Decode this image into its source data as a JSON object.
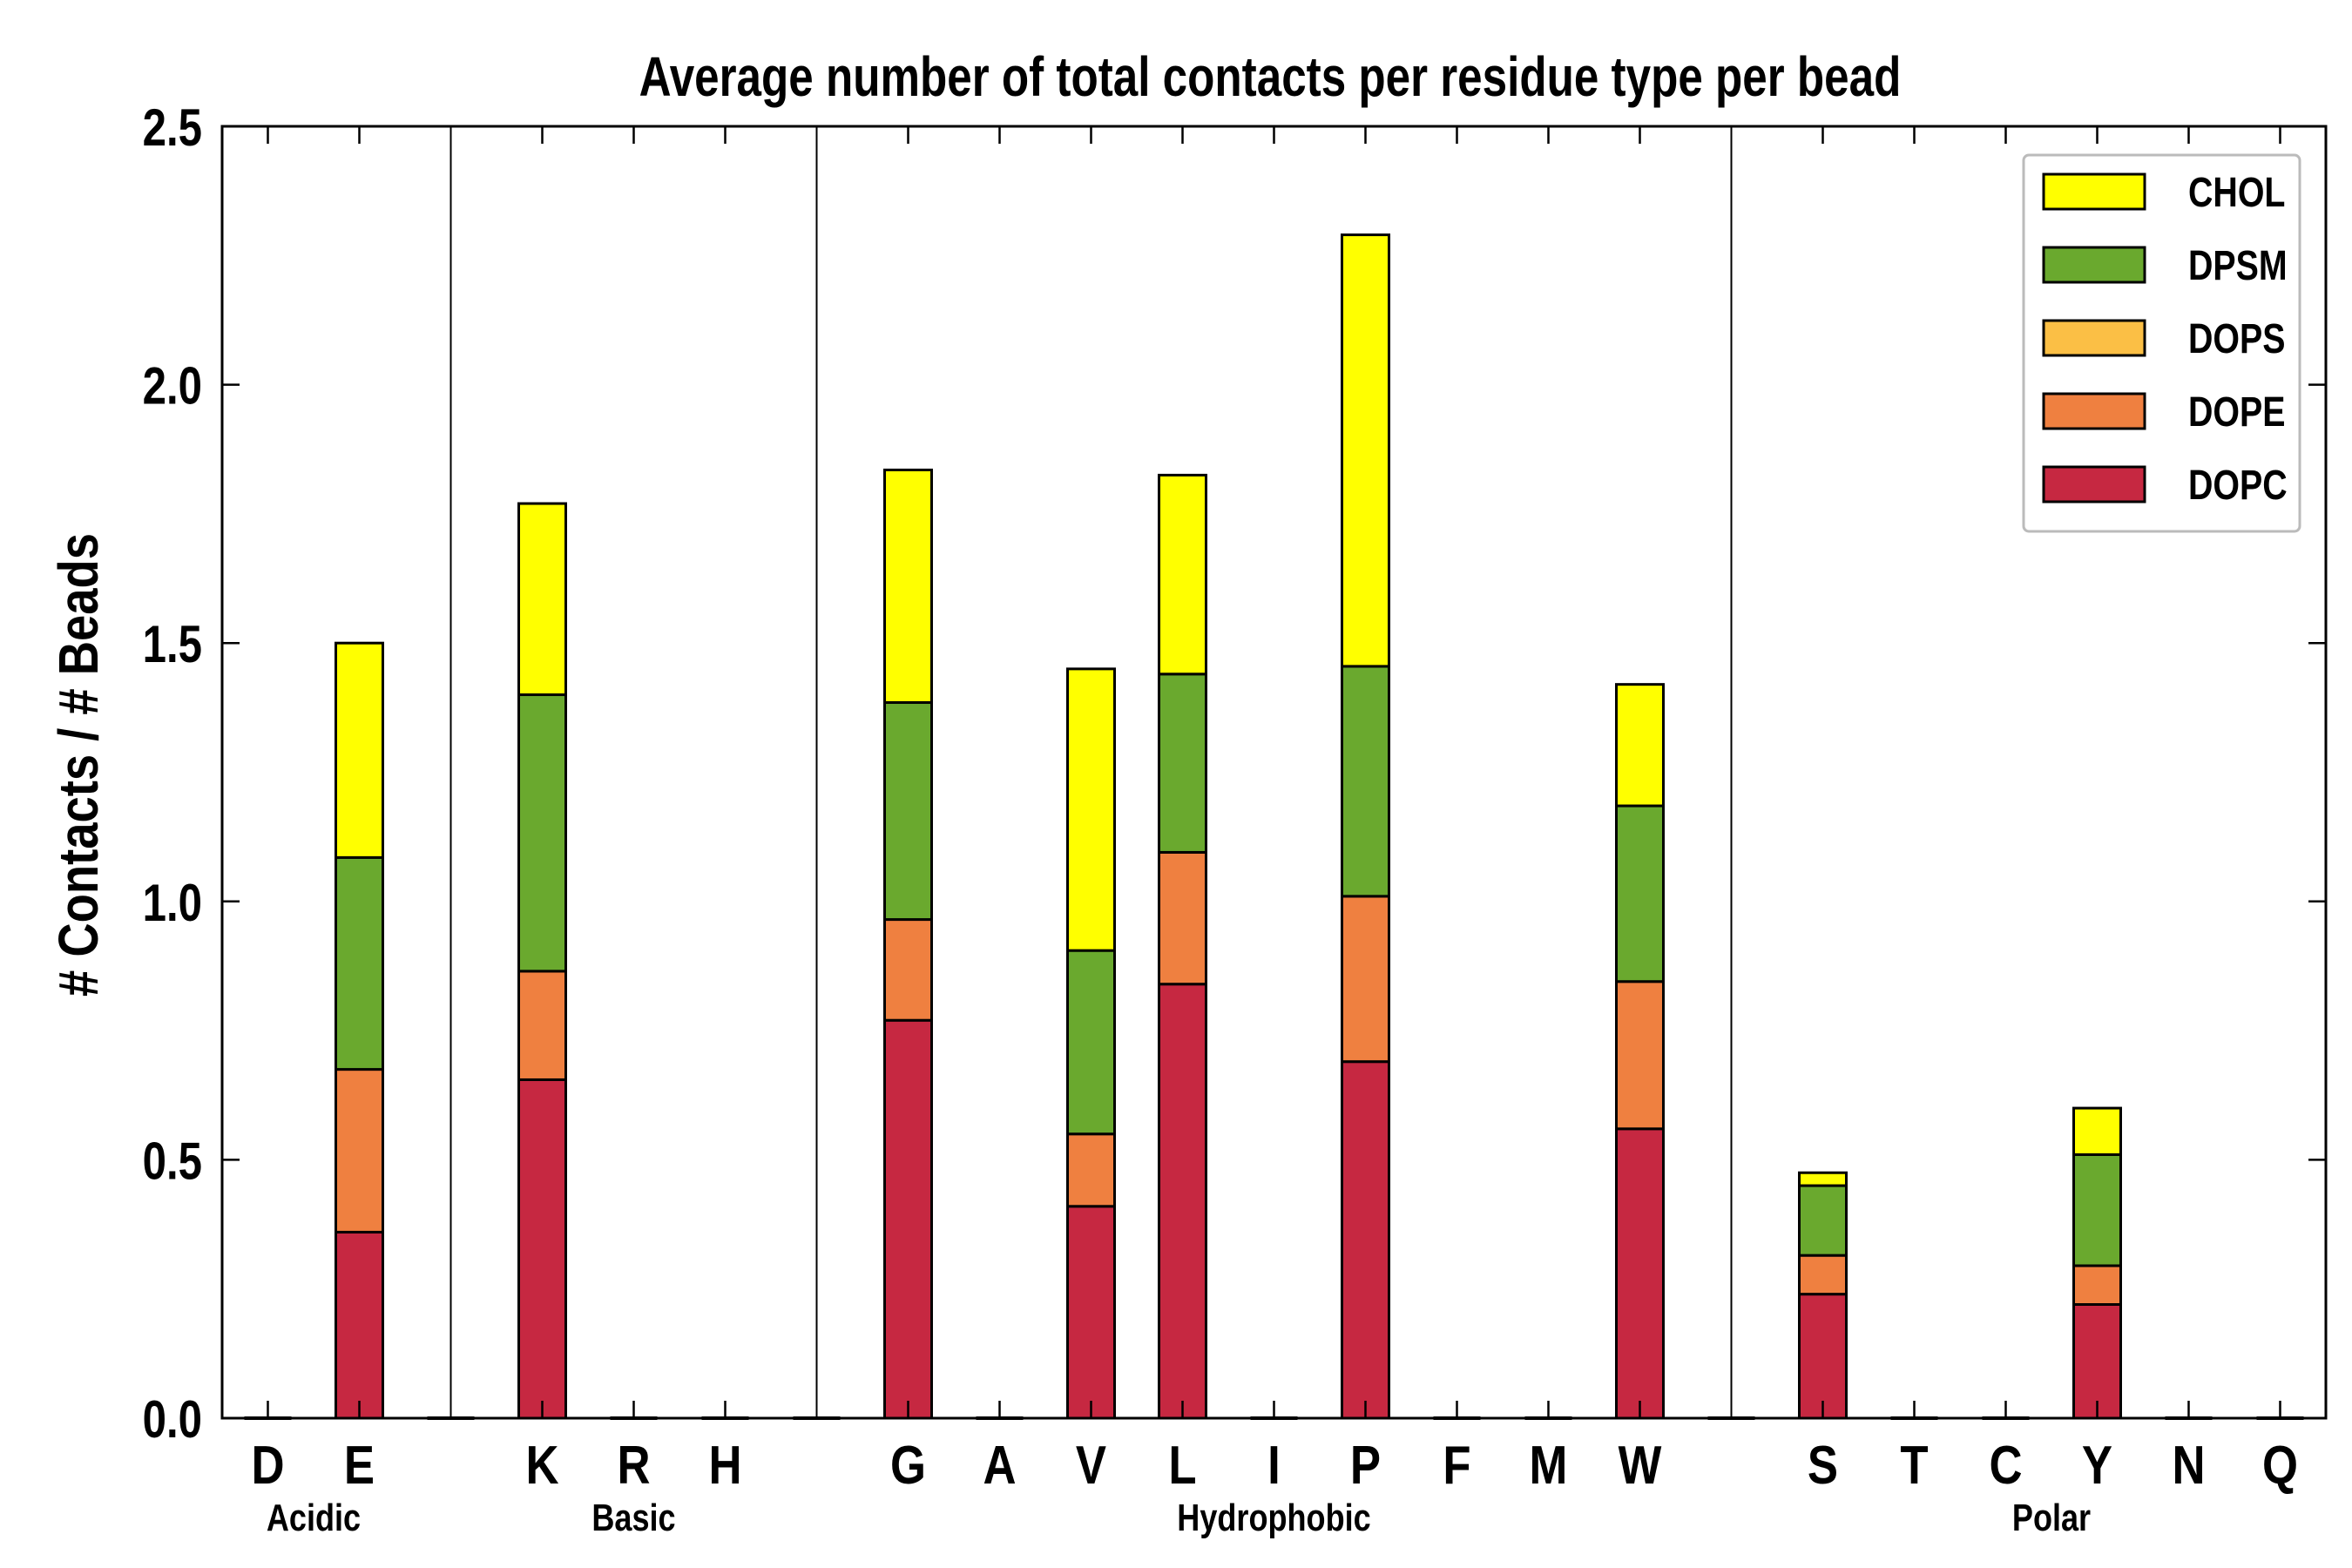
{
  "chart_data": {
    "type": "bar",
    "stacked": true,
    "title": "Average number of total contacts per residue type per bead",
    "xlabel": "",
    "ylabel": "# Contacts / # Beads",
    "ylim": [
      0,
      2.5
    ],
    "yticks": [
      "0.0",
      "0.5",
      "1.0",
      "1.5",
      "2.0",
      "2.5"
    ],
    "grid": false,
    "legend_position": "top-right",
    "categories": [
      "D",
      "E",
      "",
      "K",
      "R",
      "H",
      "",
      "G",
      "A",
      "V",
      "L",
      "I",
      "P",
      "F",
      "M",
      "W",
      "",
      "S",
      "T",
      "C",
      "Y",
      "N",
      "Q"
    ],
    "groups": [
      {
        "label": "Acidic",
        "members": [
          "D",
          "E"
        ]
      },
      {
        "label": "Basic",
        "members": [
          "K",
          "R",
          "H"
        ]
      },
      {
        "label": "Hydrophobic",
        "members": [
          "G",
          "A",
          "V",
          "L",
          "I",
          "P",
          "F",
          "M",
          "W"
        ]
      },
      {
        "label": "Polar",
        "members": [
          "S",
          "T",
          "C",
          "Y",
          "N",
          "Q"
        ]
      }
    ],
    "series": [
      {
        "name": "DOPC",
        "color": "#c62841",
        "values": [
          0,
          0.36,
          0,
          0.655,
          0,
          0,
          0,
          0.77,
          0,
          0.41,
          0.84,
          0,
          0.69,
          0,
          0,
          0.56,
          0,
          0.24,
          0,
          0,
          0.22,
          0,
          0
        ]
      },
      {
        "name": "DOPE",
        "color": "#ef8040",
        "values": [
          0,
          0.315,
          0,
          0.21,
          0,
          0,
          0,
          0.195,
          0,
          0.14,
          0.255,
          0,
          0.32,
          0,
          0,
          0.285,
          0,
          0.075,
          0,
          0,
          0.075,
          0,
          0
        ]
      },
      {
        "name": "DOPS",
        "color": "#fbbf45",
        "values": [
          0,
          0,
          0,
          0,
          0,
          0,
          0,
          0,
          0,
          0,
          0,
          0,
          0,
          0,
          0,
          0,
          0,
          0,
          0,
          0,
          0,
          0,
          0
        ]
      },
      {
        "name": "DPSM",
        "color": "#6aa92e",
        "values": [
          0,
          0.41,
          0,
          0.535,
          0,
          0,
          0,
          0.42,
          0,
          0.355,
          0.345,
          0,
          0.445,
          0,
          0,
          0.34,
          0,
          0.135,
          0,
          0,
          0.215,
          0,
          0
        ]
      },
      {
        "name": "CHOL",
        "color": "#ffff00",
        "values": [
          0,
          0.415,
          0,
          0.37,
          0,
          0,
          0,
          0.45,
          0,
          0.545,
          0.385,
          0,
          0.835,
          0,
          0,
          0.235,
          0,
          0.025,
          0,
          0,
          0.09,
          0,
          0
        ]
      }
    ],
    "legend_order": [
      "CHOL",
      "DPSM",
      "DOPS",
      "DOPE",
      "DOPC"
    ]
  }
}
